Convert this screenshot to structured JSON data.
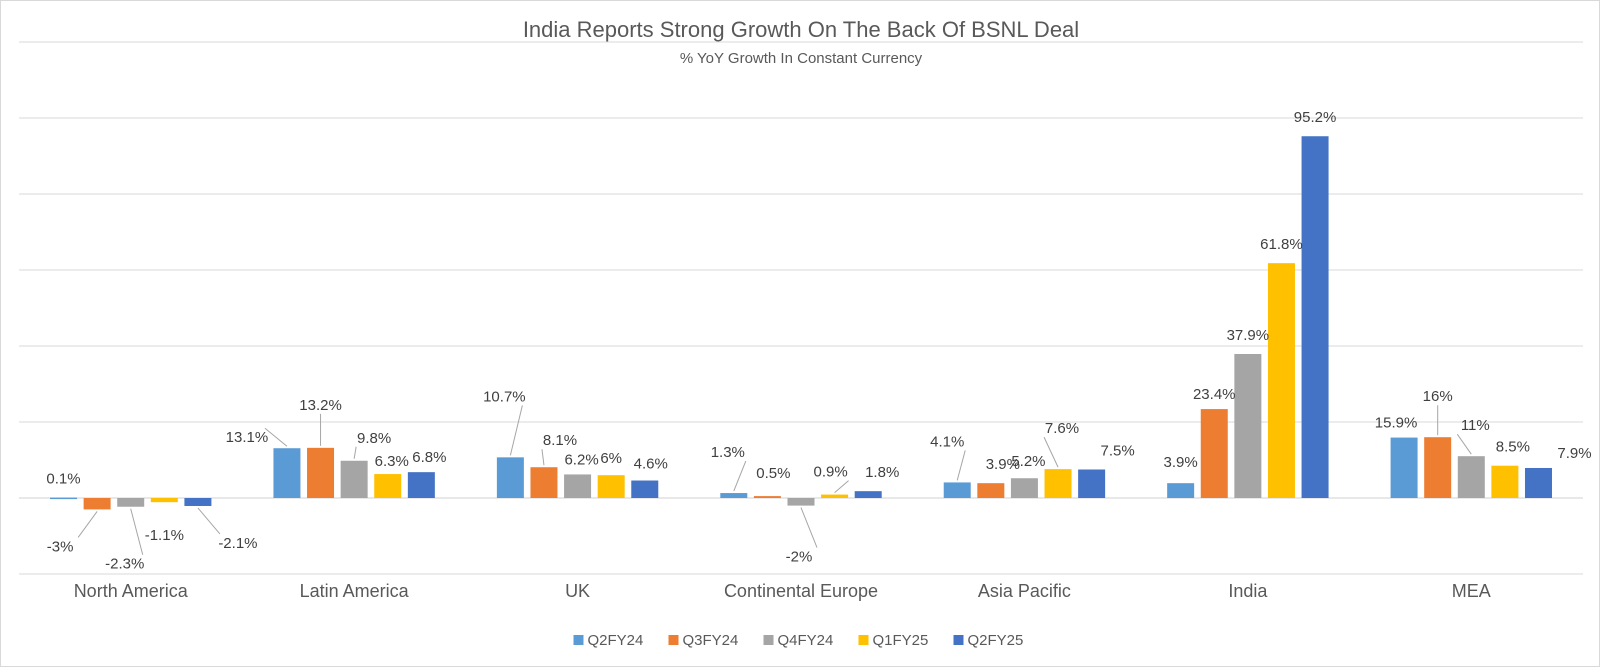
{
  "chart_data": {
    "type": "bar",
    "title": "India Reports Strong Growth On The Back Of BSNL Deal",
    "subtitle": "% YoY Growth In Constant Currency",
    "categories": [
      "North America",
      "Latin America",
      "UK",
      "Continental Europe",
      "Asia Pacific",
      "India",
      "MEA"
    ],
    "series": [
      {
        "name": "Q2FY24",
        "color": "#5b9bd5",
        "values": [
          0.1,
          13.1,
          10.7,
          1.3,
          4.1,
          3.9,
          15.9
        ],
        "labels": [
          "0.1%",
          "13.1%",
          "10.7%",
          "1.3%",
          "4.1%",
          "3.9%",
          "15.9%"
        ]
      },
      {
        "name": "Q3FY24",
        "color": "#ed7d31",
        "values": [
          -3,
          13.2,
          8.1,
          0.5,
          3.9,
          23.4,
          16
        ],
        "labels": [
          "-3%",
          "13.2%",
          "8.1%",
          "0.5%",
          "3.9%",
          "23.4%",
          "16%"
        ]
      },
      {
        "name": "Q4FY24",
        "color": "#a5a5a5",
        "values": [
          -2.3,
          9.8,
          6.2,
          -2,
          5.2,
          37.9,
          11
        ],
        "labels": [
          "-2.3%",
          "9.8%",
          "6.2%",
          "-2%",
          "5.2%",
          "37.9%",
          "11%"
        ]
      },
      {
        "name": "Q1FY25",
        "color": "#ffc000",
        "values": [
          -1.1,
          6.3,
          6,
          0.9,
          7.6,
          61.8,
          8.5
        ],
        "labels": [
          "-1.1%",
          "6.3%",
          "6%",
          "0.9%",
          "7.6%",
          "61.8%",
          "8.5%"
        ]
      },
      {
        "name": "Q2FY25",
        "color": "#4472c4",
        "values": [
          -2.1,
          6.8,
          4.6,
          1.8,
          7.5,
          95.2,
          7.9
        ],
        "labels": [
          "-2.1%",
          "6.8%",
          "4.6%",
          "1.8%",
          "7.5%",
          "95.2%",
          "7.9%"
        ]
      }
    ],
    "ylim": [
      -20,
      120
    ],
    "grid": true,
    "legend_position": "bottom"
  }
}
